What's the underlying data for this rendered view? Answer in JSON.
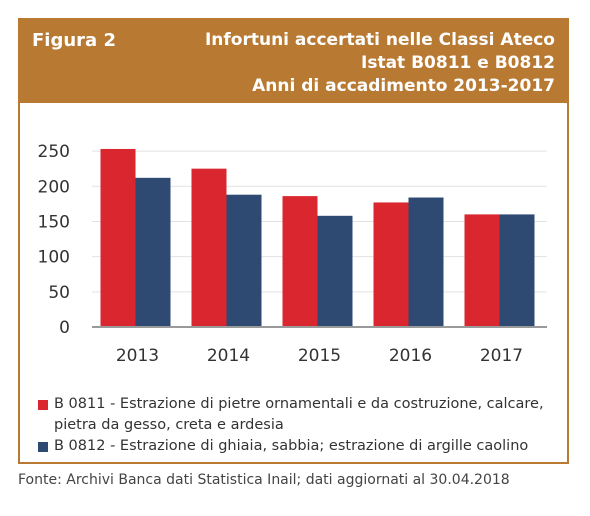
{
  "figure": {
    "label": "Figura 2",
    "title_lines": [
      "Infortuni accertati nelle Classi Ateco",
      "Istat B0811 e B0812",
      "Anni di accadimento 2013-2017"
    ]
  },
  "colors": {
    "header_bg": "#b87a33",
    "series_1": "#d9262f",
    "series_2": "#2e4a72"
  },
  "chart_data": {
    "type": "bar",
    "categories": [
      "2013",
      "2014",
      "2015",
      "2016",
      "2017"
    ],
    "series": [
      {
        "name": "B 0811 - Estrazione di pietre ornamentali e da costruzione, calcare, pietra da gesso, creta e ardesia",
        "values": [
          253,
          225,
          186,
          177,
          160
        ]
      },
      {
        "name": "B 0812 - Estrazione di ghiaia, sabbia; estrazione di argille caolino",
        "values": [
          212,
          188,
          158,
          184,
          160
        ]
      }
    ],
    "yticks": [
      "0",
      "50",
      "100",
      "150",
      "200",
      "250"
    ],
    "ylim": [
      0,
      270
    ],
    "grid": true,
    "legend_position": "bottom"
  },
  "legend": {
    "items": [
      {
        "line1": "B 0811 - Estrazione di pietre ornamentali e da costruzione, calcare,",
        "line2": "pietra da gesso, creta e ardesia"
      },
      {
        "line1": "B 0812 - Estrazione di ghiaia, sabbia; estrazione di argille caolino",
        "line2": ""
      }
    ]
  },
  "source": "Fonte: Archivi Banca dati Statistica Inail; dati aggiornati al 30.04.2018"
}
